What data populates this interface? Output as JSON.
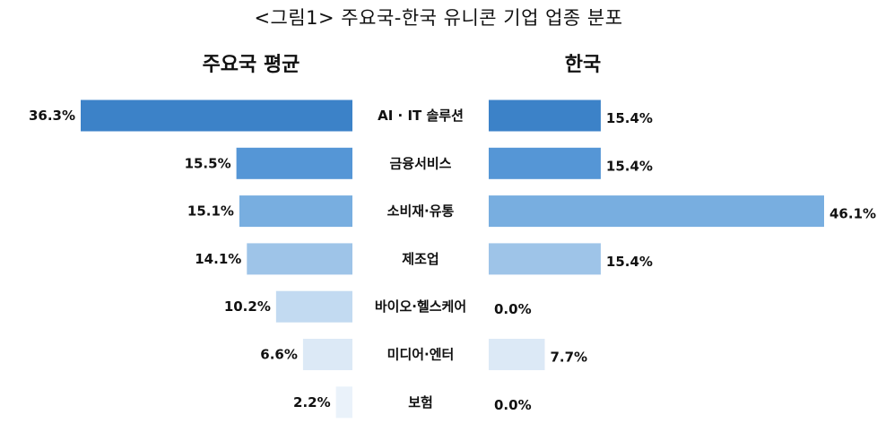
{
  "title": "<그림1> 주요국-한국 유니콘 기업 업종 분포",
  "chart_data": [
    {
      "type": "bar",
      "orientation": "horizontal",
      "title": "주요국 평균",
      "categories": [
        "AI · IT 솔루션",
        "금융서비스",
        "소비재·유통",
        "제조업",
        "바이오·헬스케어",
        "미디어·엔터",
        "보험"
      ],
      "values": [
        36.3,
        15.5,
        15.1,
        14.1,
        10.2,
        6.6,
        2.2
      ],
      "labels": [
        "36.3%",
        "15.5%",
        "15.1%",
        "14.1%",
        "10.2%",
        "6.6%",
        "2.2%"
      ],
      "unit": "%",
      "bar_direction": "leftward",
      "xlim": [
        0,
        36.3
      ],
      "grid": false,
      "legend": "none"
    },
    {
      "type": "bar",
      "orientation": "horizontal",
      "title": "한국",
      "categories": [
        "AI · IT 솔루션",
        "금융서비스",
        "소비재·유통",
        "제조업",
        "바이오·헬스케어",
        "미디어·엔터",
        "보험"
      ],
      "values": [
        15.4,
        15.4,
        46.1,
        15.4,
        0.0,
        7.7,
        0.0
      ],
      "labels": [
        "15.4%",
        "15.4%",
        "46.1%",
        "15.4%",
        "0.0%",
        "7.7%",
        "0.0%"
      ],
      "unit": "%",
      "bar_direction": "rightward",
      "xlim": [
        0,
        46.1
      ],
      "grid": false,
      "legend": "none"
    }
  ],
  "bar_colors": [
    "#3c82c8",
    "#5596d6",
    "#78aee0",
    "#9ec4e8",
    "#c2daf1",
    "#dce9f6",
    "#eaf2fa"
  ]
}
